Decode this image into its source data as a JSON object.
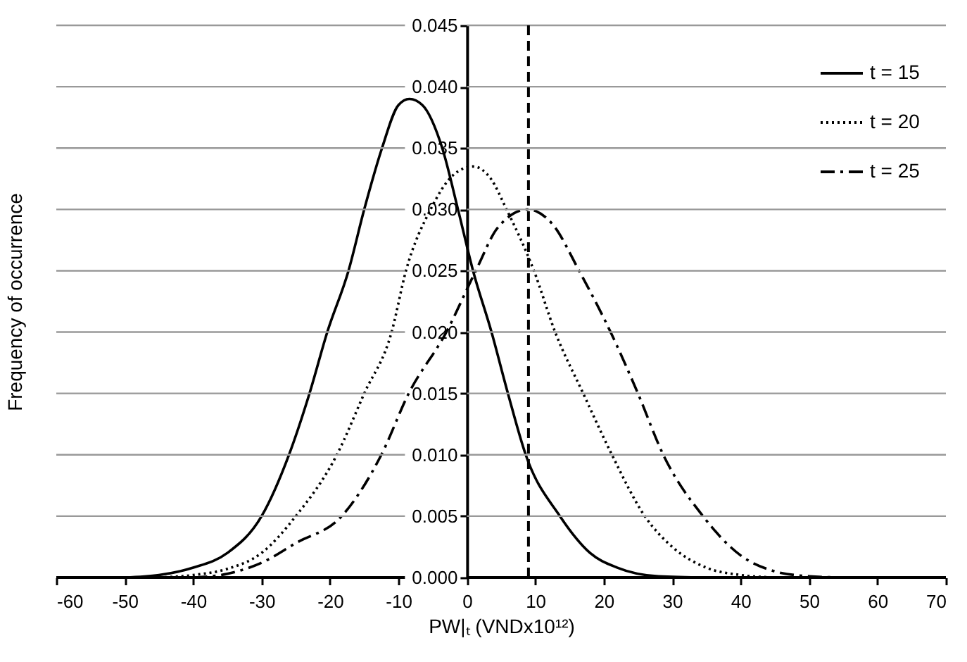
{
  "chart_data": {
    "type": "line",
    "xlabel": "PW|ₜ (VNDx10¹²)",
    "ylabel": "Frequency of occurrence",
    "xlim": [
      -60,
      70
    ],
    "xticks": [
      -60,
      -50,
      -40,
      -30,
      -20,
      -10,
      0,
      10,
      20,
      30,
      40,
      50,
      60,
      70
    ],
    "ylim": [
      0,
      0.045
    ],
    "yticks": [
      {
        "value": 0,
        "label": "0.000"
      },
      {
        "value": 0.005,
        "label": "0.005"
      },
      {
        "value": 0.01,
        "label": "0.010"
      },
      {
        "value": 0.015,
        "label": "0.015"
      },
      {
        "value": 0.02,
        "label": "0.020"
      },
      {
        "value": 0.025,
        "label": "0.025"
      },
      {
        "value": 0.03,
        "label": "0.030"
      },
      {
        "value": 0.035,
        "label": "0.035"
      },
      {
        "value": 0.04,
        "label": "0.040"
      },
      {
        "value": 0.045,
        "label": "0.045"
      }
    ],
    "grid": "y",
    "legend": "top right",
    "marker": "none",
    "ref_lines": [
      {
        "axis": "x",
        "value": 9,
        "line_style": "dashed",
        "color": "#000000"
      }
    ],
    "series": [
      {
        "name": "t = 15",
        "color": "#000000",
        "line_style": "solid",
        "x": [
          -50,
          -45,
          -40,
          -35,
          -30,
          -26,
          -23,
          -20.4,
          -17.3,
          -15,
          -12.4,
          -10,
          -8.4,
          -6.5,
          -3.6,
          -1.3,
          0.9,
          3.6,
          6,
          8.6,
          13.6,
          18,
          22,
          28,
          35
        ],
        "values": [
          0,
          0.0002,
          0.0008,
          0.002,
          0.005,
          0.01,
          0.015,
          0.02,
          0.025,
          0.03,
          0.035,
          0.0385,
          0.039,
          0.0385,
          0.035,
          0.03,
          0.025,
          0.02,
          0.015,
          0.01,
          0.005,
          0.002,
          0.0008,
          0.0001,
          0
        ]
      },
      {
        "name": "t = 20",
        "color": "#000000",
        "line_style": "dotted",
        "x": [
          -45,
          -40,
          -35,
          -30,
          -25,
          -19,
          -15,
          -11,
          -8.9,
          -5.3,
          -2,
          0.9,
          3.5,
          5.8,
          9.8,
          12.9,
          17,
          21.2,
          26,
          30,
          35,
          40,
          45
        ],
        "values": [
          0,
          0.0002,
          0.0007,
          0.002,
          0.005,
          0.01,
          0.015,
          0.02,
          0.025,
          0.03,
          0.0328,
          0.0335,
          0.0325,
          0.03,
          0.025,
          0.02,
          0.015,
          0.01,
          0.005,
          0.0025,
          0.0008,
          0.0002,
          0
        ]
      },
      {
        "name": "t = 25",
        "color": "#000000",
        "line_style": "dashdot",
        "x": [
          -40,
          -35,
          -30,
          -25,
          -18.3,
          -12.5,
          -8.5,
          -3,
          1.3,
          4.5,
          8.9,
          12.5,
          16.4,
          21,
          25,
          28.7,
          34.5,
          40,
          45,
          50,
          55
        ],
        "values": [
          0,
          0.0003,
          0.0012,
          0.0028,
          0.005,
          0.01,
          0.015,
          0.02,
          0.025,
          0.0285,
          0.03,
          0.0288,
          0.025,
          0.02,
          0.015,
          0.01,
          0.005,
          0.0018,
          0.0005,
          0.0001,
          0
        ]
      }
    ]
  }
}
